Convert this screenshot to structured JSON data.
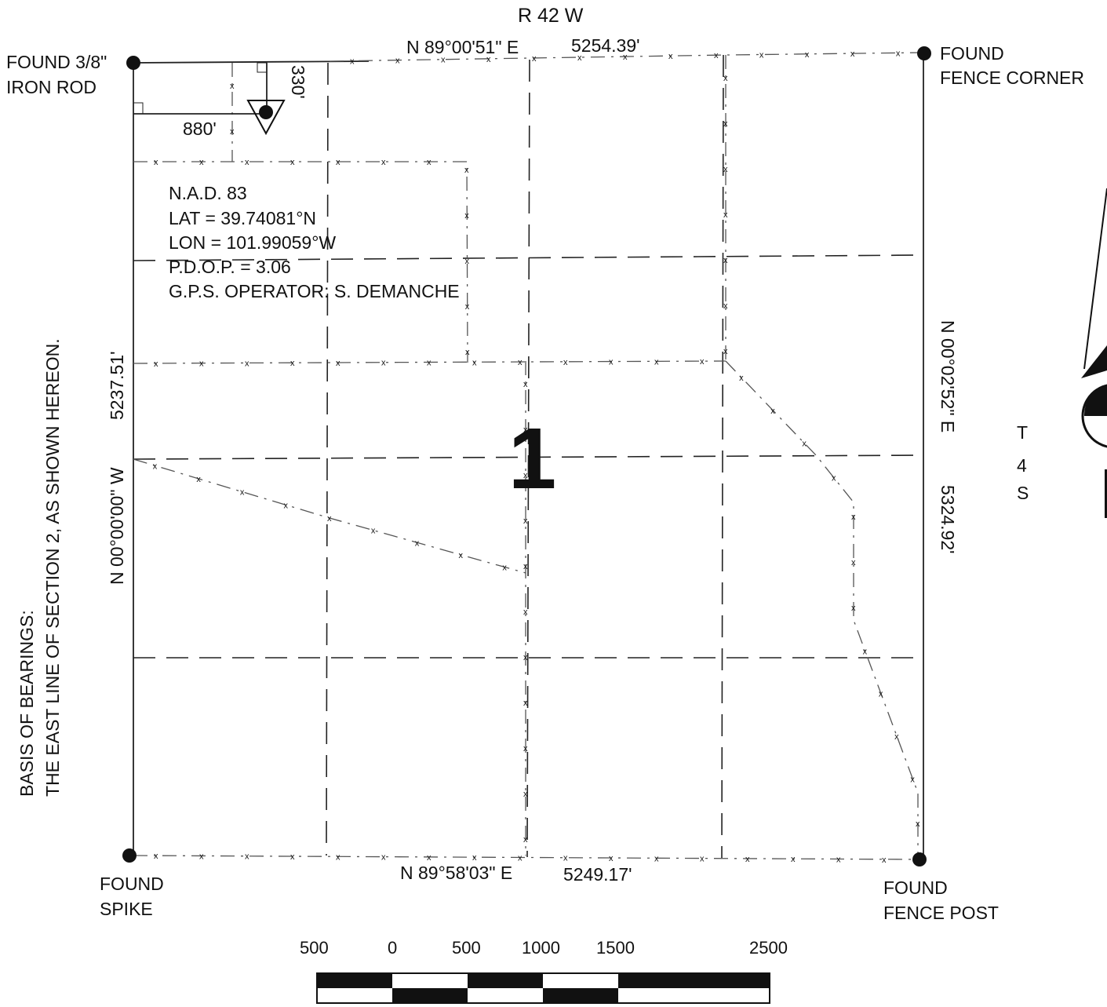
{
  "range_label": "R 42 W",
  "township_label": [
    "T",
    "4",
    "S"
  ],
  "section_number": "1",
  "north_line": {
    "bearing": "N 89°00'51\" E",
    "distance": "5254.39'"
  },
  "south_line": {
    "bearing": "N 89°58'03\" E",
    "distance": "5249.17'"
  },
  "west_line": {
    "bearing": "N 00°00'00\" W",
    "distance": "5237.51'"
  },
  "east_line": {
    "bearing": "N 00°02'52\" E",
    "distance": "5324.92'"
  },
  "corners": {
    "nw": [
      "FOUND 3/8\"",
      "IRON ROD"
    ],
    "ne": [
      "FOUND",
      "FENCE CORNER"
    ],
    "sw": [
      "FOUND",
      "SPIKE"
    ],
    "se": [
      "FOUND",
      "FENCE POST"
    ]
  },
  "offsets": {
    "from_north": "330'",
    "from_west": "880'"
  },
  "gps_info": [
    "N.A.D. 83",
    "LAT = 39.74081°N",
    "LON = 101.99059°W",
    "P.D.O.P. = 3.06",
    "G.P.S. OPERATOR: S. DEMANCHE"
  ],
  "basis_of_bearings": [
    "BASIS OF BEARINGS:",
    "THE EAST LINE OF SECTION 2, AS SHOWN HEREON."
  ],
  "scale_bar": {
    "labels": [
      "500",
      "0",
      "500",
      "1000",
      "1500",
      "2500"
    ]
  }
}
